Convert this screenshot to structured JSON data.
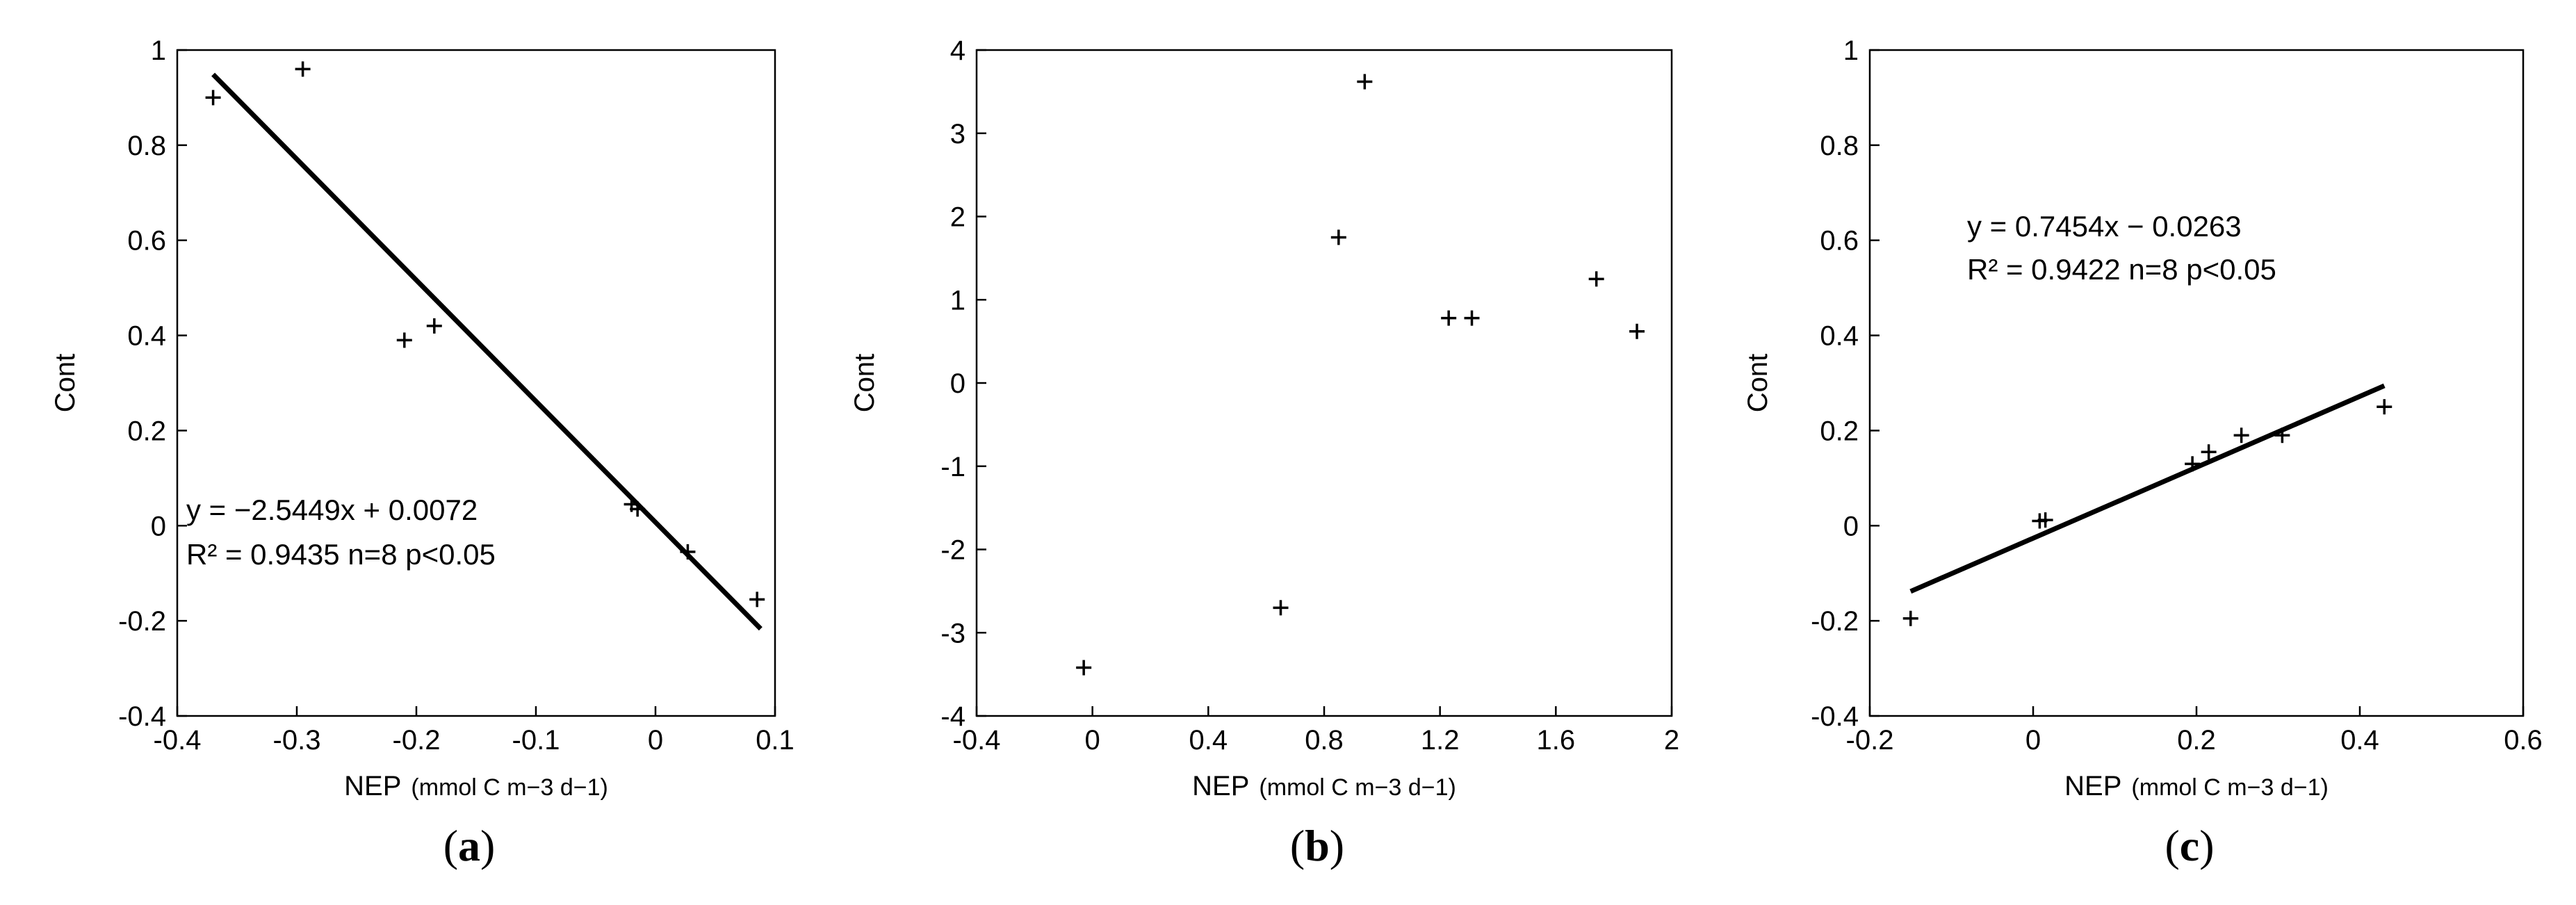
{
  "chart_data": [
    {
      "type": "scatter",
      "panel_label": "a",
      "xlabel": "NEP",
      "xlabel_unit": "(mmol C m−3 d−1)",
      "ylabel": "Cont",
      "xlim": [
        -0.4,
        0.1
      ],
      "ylim": [
        -0.4,
        1.0
      ],
      "xticks": [
        -0.4,
        -0.3,
        -0.2,
        -0.1,
        0,
        0.1
      ],
      "yticks": [
        -0.4,
        -0.2,
        0,
        0.2,
        0.4,
        0.6,
        0.8,
        1
      ],
      "xtick_labels": [
        "-0.4",
        "-0.3",
        "-0.2",
        "-0.1",
        "0",
        "0.1"
      ],
      "ytick_labels": [
        "-0.4",
        "-0.2",
        "0",
        "0.2",
        "0.4",
        "0.6",
        "0.8",
        "1"
      ],
      "grid": false,
      "marker": "plus",
      "points": [
        {
          "x": -0.37,
          "y": 0.9
        },
        {
          "x": -0.295,
          "y": 0.96
        },
        {
          "x": -0.21,
          "y": 0.39
        },
        {
          "x": -0.185,
          "y": 0.42
        },
        {
          "x": -0.02,
          "y": 0.045
        },
        {
          "x": -0.015,
          "y": 0.035
        },
        {
          "x": 0.027,
          "y": -0.055
        },
        {
          "x": 0.085,
          "y": -0.155
        }
      ],
      "trendline": {
        "slope": -2.5449,
        "intercept": 0.0072,
        "x_range": [
          -0.37,
          0.088
        ]
      },
      "annotation": {
        "equation": "y = −2.5449x + 0.0072",
        "stats": "R² = 0.9435 n=8 p<0.05"
      }
    },
    {
      "type": "scatter",
      "panel_label": "b",
      "xlabel": "NEP",
      "xlabel_unit": "(mmol C m−3 d−1)",
      "ylabel": "Cont",
      "xlim": [
        -0.4,
        2.0
      ],
      "ylim": [
        -4,
        4
      ],
      "xticks": [
        -0.4,
        0,
        0.4,
        0.8,
        1.2,
        1.6,
        2
      ],
      "yticks": [
        -4,
        -3,
        -2,
        -1,
        0,
        1,
        2,
        3,
        4
      ],
      "xtick_labels": [
        "-0.4",
        "0",
        "0.4",
        "0.8",
        "1.2",
        "1.6",
        "2"
      ],
      "ytick_labels": [
        "-4",
        "-3",
        "-2",
        "-1",
        "0",
        "1",
        "2",
        "3",
        "4"
      ],
      "grid": false,
      "marker": "plus",
      "points": [
        {
          "x": -0.03,
          "y": -3.42
        },
        {
          "x": 0.65,
          "y": -2.7
        },
        {
          "x": 0.85,
          "y": 1.75
        },
        {
          "x": 0.94,
          "y": 3.62
        },
        {
          "x": 1.23,
          "y": 0.78
        },
        {
          "x": 1.31,
          "y": 0.78
        },
        {
          "x": 1.74,
          "y": 1.25
        },
        {
          "x": 1.88,
          "y": 0.62
        }
      ]
    },
    {
      "type": "scatter",
      "panel_label": "c",
      "xlabel": "NEP",
      "xlabel_unit": "(mmol C m−3 d−1)",
      "ylabel": "Cont",
      "xlim": [
        -0.2,
        0.6
      ],
      "ylim": [
        -0.4,
        1.0
      ],
      "xticks": [
        -0.2,
        0,
        0.2,
        0.4,
        0.6
      ],
      "yticks": [
        -0.4,
        -0.2,
        0,
        0.2,
        0.4,
        0.6,
        0.8,
        1
      ],
      "xtick_labels": [
        "-0.2",
        "0",
        "0.2",
        "0.4",
        "0.6"
      ],
      "ytick_labels": [
        "-0.4",
        "-0.2",
        "0",
        "0.2",
        "0.4",
        "0.6",
        "0.8",
        "1"
      ],
      "grid": false,
      "marker": "plus",
      "points": [
        {
          "x": -0.15,
          "y": -0.195
        },
        {
          "x": 0.008,
          "y": 0.01
        },
        {
          "x": 0.015,
          "y": 0.012
        },
        {
          "x": 0.195,
          "y": 0.13
        },
        {
          "x": 0.215,
          "y": 0.155
        },
        {
          "x": 0.255,
          "y": 0.19
        },
        {
          "x": 0.305,
          "y": 0.19
        },
        {
          "x": 0.43,
          "y": 0.25
        }
      ],
      "trendline": {
        "slope": 0.7454,
        "intercept": -0.0263,
        "x_range": [
          -0.15,
          0.43
        ]
      },
      "annotation": {
        "equation": "y = 0.7454x − 0.0263",
        "stats": "R² = 0.9422 n=8 p<0.05"
      }
    }
  ]
}
